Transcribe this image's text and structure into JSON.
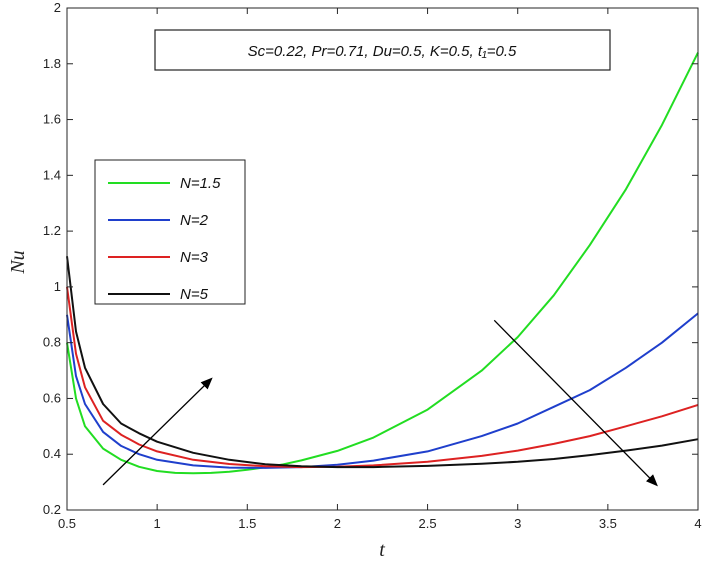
{
  "chart_data": {
    "type": "line",
    "xlabel": "t",
    "ylabel": "Nu",
    "xlim": [
      0.5,
      4
    ],
    "ylim": [
      0.2,
      2
    ],
    "xticks": [
      "0.5",
      "1",
      "1.5",
      "2",
      "2.5",
      "3",
      "3.5",
      "4"
    ],
    "yticks": [
      "0.2",
      "0.4",
      "0.6",
      "0.8",
      "1",
      "1.2",
      "1.4",
      "1.6",
      "1.8",
      "2"
    ],
    "annotation": "Sc=0.22, Pr=0.71, Du=0.5, K=0.5, t₁=0.5",
    "legend_position": "upper-left",
    "grid": false,
    "series": [
      {
        "name": "N=1.5",
        "color": "#22dd22",
        "x": [
          0.5,
          0.55,
          0.6,
          0.7,
          0.8,
          0.9,
          1.0,
          1.1,
          1.2,
          1.3,
          1.4,
          1.5,
          1.6,
          1.7,
          1.8,
          2.0,
          2.2,
          2.5,
          2.8,
          3.0,
          3.2,
          3.4,
          3.6,
          3.8,
          4.0
        ],
        "values": [
          0.8,
          0.6,
          0.5,
          0.42,
          0.38,
          0.355,
          0.34,
          0.333,
          0.332,
          0.333,
          0.337,
          0.344,
          0.353,
          0.364,
          0.378,
          0.412,
          0.46,
          0.56,
          0.7,
          0.82,
          0.97,
          1.15,
          1.35,
          1.58,
          1.84
        ]
      },
      {
        "name": "N=2",
        "color": "#1f3fcc",
        "x": [
          0.5,
          0.55,
          0.6,
          0.7,
          0.8,
          0.9,
          1.0,
          1.2,
          1.4,
          1.6,
          1.8,
          2.0,
          2.2,
          2.5,
          2.8,
          3.0,
          3.2,
          3.4,
          3.6,
          3.8,
          4.0
        ],
        "values": [
          0.9,
          0.68,
          0.58,
          0.48,
          0.43,
          0.4,
          0.38,
          0.36,
          0.352,
          0.351,
          0.354,
          0.362,
          0.377,
          0.41,
          0.465,
          0.51,
          0.57,
          0.63,
          0.71,
          0.8,
          0.905
        ]
      },
      {
        "name": "N=3",
        "color": "#dd2222",
        "x": [
          0.5,
          0.55,
          0.6,
          0.7,
          0.8,
          0.9,
          1.0,
          1.2,
          1.4,
          1.6,
          1.8,
          2.0,
          2.2,
          2.5,
          2.8,
          3.0,
          3.2,
          3.4,
          3.6,
          3.8,
          4.0
        ],
        "values": [
          1.0,
          0.76,
          0.64,
          0.52,
          0.47,
          0.435,
          0.41,
          0.38,
          0.365,
          0.357,
          0.354,
          0.355,
          0.36,
          0.373,
          0.394,
          0.413,
          0.437,
          0.465,
          0.5,
          0.536,
          0.577
        ]
      },
      {
        "name": "N=5",
        "color": "#111111",
        "x": [
          0.5,
          0.55,
          0.6,
          0.7,
          0.8,
          0.9,
          1.0,
          1.2,
          1.4,
          1.6,
          1.8,
          2.0,
          2.2,
          2.5,
          2.8,
          3.0,
          3.2,
          3.4,
          3.6,
          3.8,
          4.0
        ],
        "values": [
          1.11,
          0.84,
          0.71,
          0.58,
          0.51,
          0.475,
          0.445,
          0.405,
          0.38,
          0.364,
          0.357,
          0.354,
          0.354,
          0.358,
          0.366,
          0.373,
          0.383,
          0.397,
          0.413,
          0.431,
          0.454
        ]
      }
    ],
    "arrows": [
      {
        "from": [
          0.7,
          0.29
        ],
        "to": [
          1.3,
          0.67
        ]
      },
      {
        "from": [
          2.87,
          0.88
        ],
        "to": [
          3.77,
          0.29
        ]
      }
    ]
  }
}
